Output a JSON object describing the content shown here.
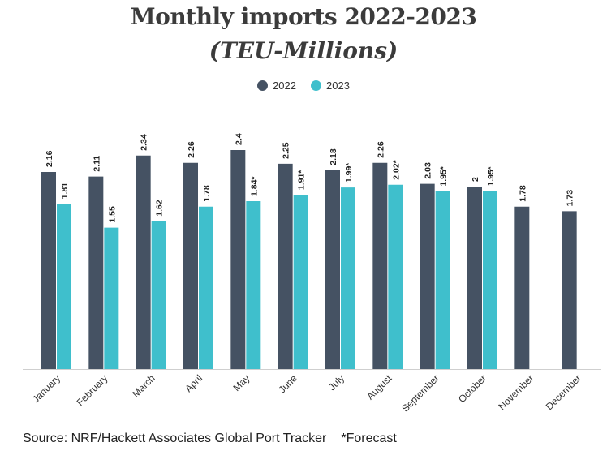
{
  "chart_data": {
    "type": "bar",
    "title": "Monthly imports 2022-2023",
    "subtitle": "(TEU-Millions)",
    "categories": [
      "January",
      "February",
      "March",
      "April",
      "May",
      "June",
      "July",
      "August",
      "September",
      "October",
      "November",
      "December"
    ],
    "series": [
      {
        "name": "2022",
        "color": "#455263",
        "values": [
          2.16,
          2.11,
          2.34,
          2.26,
          2.4,
          2.25,
          2.18,
          2.26,
          2.03,
          2,
          1.78,
          1.73
        ],
        "labels": [
          "2.16",
          "2.11",
          "2.34",
          "2.26",
          "2.4",
          "2.25",
          "2.18",
          "2.26",
          "2.03",
          "2",
          "1.78",
          "1.73"
        ]
      },
      {
        "name": "2023",
        "color": "#3fbfcc",
        "values": [
          1.81,
          1.55,
          1.62,
          1.78,
          1.84,
          1.91,
          1.99,
          2.02,
          1.95,
          1.95,
          null,
          null
        ],
        "labels": [
          "1.81",
          "1.55",
          "1.62",
          "1.78",
          "1.84*",
          "1.91*",
          "1.99*",
          "2.02*",
          "1.95*",
          "1.95*",
          null,
          null
        ]
      }
    ],
    "ylim": [
      0,
      2.4
    ],
    "legend_position": "top-center",
    "grid": false
  },
  "footer": {
    "source": "Source: NRF/Hackett Associates Global Port Tracker",
    "note": "*Forecast"
  }
}
